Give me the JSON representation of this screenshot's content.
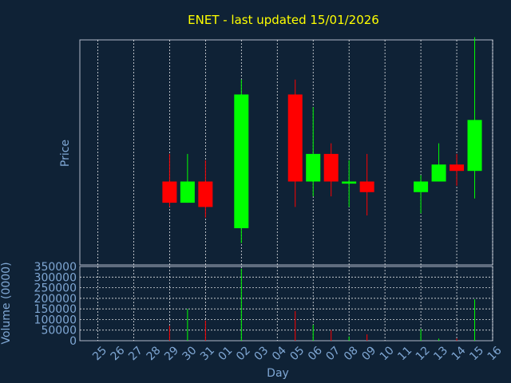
{
  "chart_data": {
    "type": "candlestick",
    "title": "ENET - last updated 15/01/2026",
    "ylabel": "Price",
    "xlabel": "Day",
    "volume_label": "Volume (0000)",
    "colors": {
      "background": "#0f2236",
      "title": "#ffff00",
      "axis_text": "#7fa7d4",
      "grid": "#ffffff",
      "up": "#00ff00",
      "down": "#ff0000"
    },
    "days": [
      "25",
      "26",
      "27",
      "28",
      "29",
      "30",
      "31",
      "01",
      "02",
      "03",
      "04",
      "05",
      "06",
      "07",
      "08",
      "09",
      "10",
      "11",
      "12",
      "13",
      "14",
      "15",
      "16"
    ],
    "price_range": [
      0,
      100
    ],
    "volume_axis": {
      "min": 0,
      "max": 350000,
      "ticks": [
        "0",
        "50000",
        "100000",
        "150000",
        "200000",
        "250000",
        "300000",
        "350000"
      ]
    },
    "candles": [
      {
        "day": "29",
        "open": 22,
        "close": 12,
        "high": 35,
        "low": 10,
        "volume": 70000
      },
      {
        "day": "30",
        "open": 12,
        "close": 22,
        "high": 35,
        "low": 12,
        "volume": 150000
      },
      {
        "day": "31",
        "open": 22,
        "close": 10,
        "high": 32,
        "low": 5,
        "volume": 95000
      },
      {
        "day": "02",
        "open": 0,
        "close": 63,
        "high": 70,
        "low": -7,
        "volume": 340000
      },
      {
        "day": "05",
        "open": 63,
        "close": 22,
        "high": 70,
        "low": 10,
        "volume": 140000
      },
      {
        "day": "06",
        "open": 22,
        "close": 35,
        "high": 57,
        "low": 15,
        "volume": 75000
      },
      {
        "day": "07",
        "open": 35,
        "close": 22,
        "high": 40,
        "low": 15,
        "volume": 50000
      },
      {
        "day": "08",
        "open": 21,
        "close": 22,
        "high": 32,
        "low": 10,
        "volume": 20000
      },
      {
        "day": "09",
        "open": 22,
        "close": 17,
        "high": 35,
        "low": 6,
        "volume": 30000
      },
      {
        "day": "12",
        "open": 17,
        "close": 22,
        "high": 25,
        "low": 7,
        "volume": 55000
      },
      {
        "day": "13",
        "open": 22,
        "close": 30,
        "high": 40,
        "low": 22,
        "volume": 10000
      },
      {
        "day": "14",
        "open": 30,
        "close": 27,
        "high": 35,
        "low": 20,
        "volume": 10000
      },
      {
        "day": "15",
        "open": 27,
        "close": 51,
        "high": 90,
        "low": 14,
        "volume": 195000
      }
    ]
  }
}
